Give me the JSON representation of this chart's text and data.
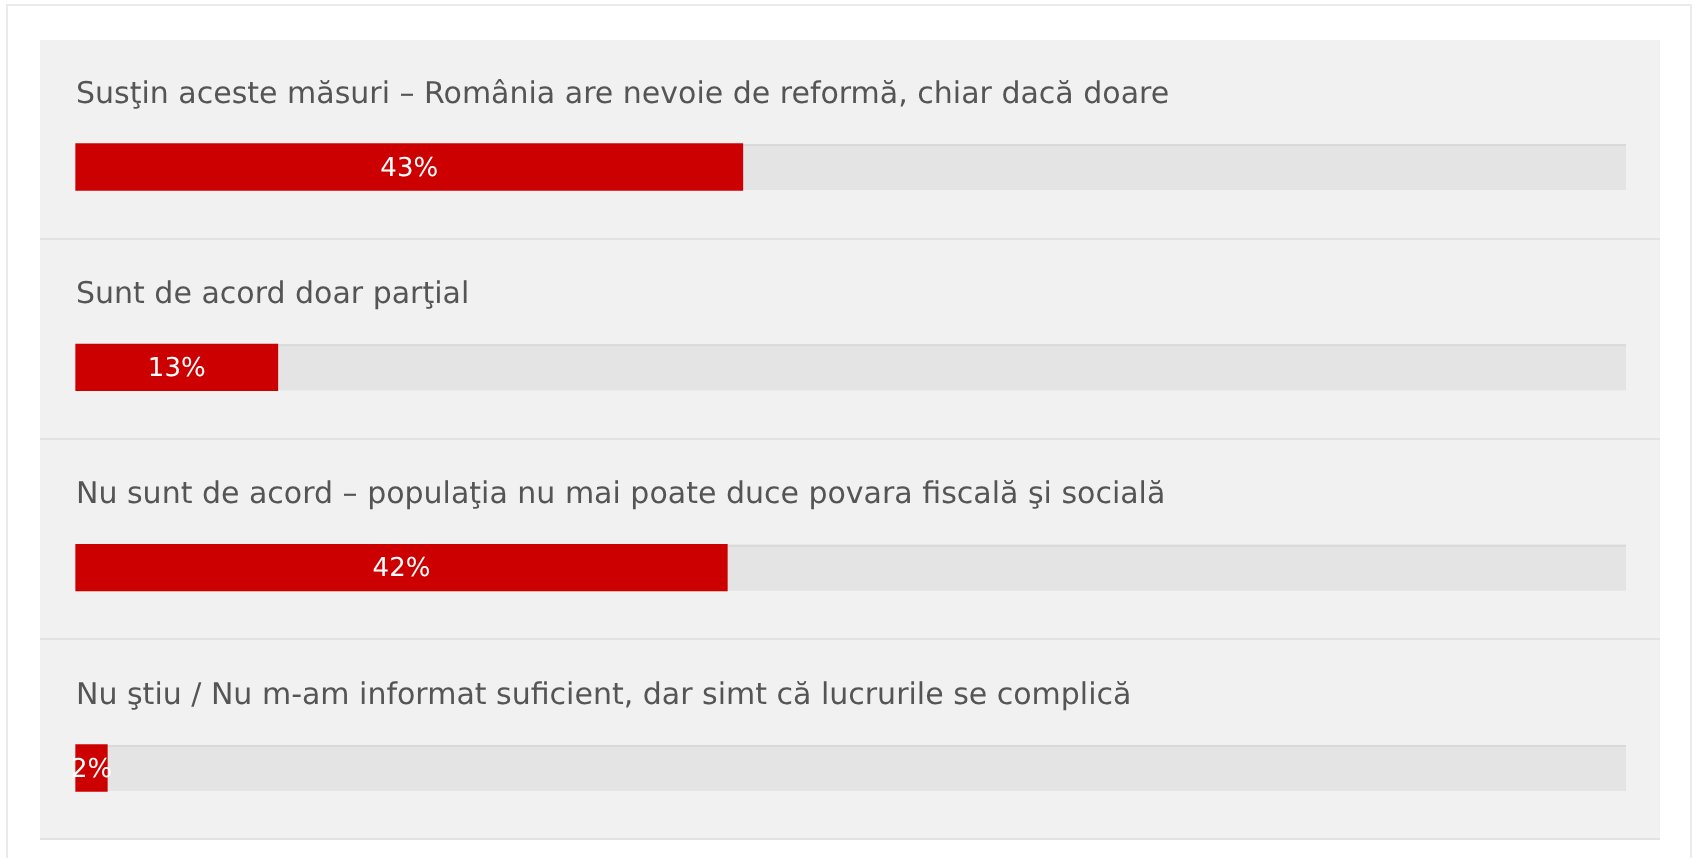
{
  "chart_data": {
    "type": "bar",
    "orientation": "horizontal",
    "categories": [
      "Susţin aceste măsuri – România are nevoie de reformă, chiar dacă doare",
      "Sunt de acord doar parţial",
      "Nu sunt de acord – populaţia nu mai poate duce povara fiscală şi socială",
      "Nu ştiu / Nu m-am informat suficient, dar simt că lucrurile se complică"
    ],
    "values": [
      43,
      13,
      42,
      2
    ],
    "color": "#cc0000",
    "value_labels": [
      "43%",
      "13%",
      "42%",
      "2%"
    ],
    "xlim": [
      0,
      100
    ],
    "tick_labels": "y"
  }
}
